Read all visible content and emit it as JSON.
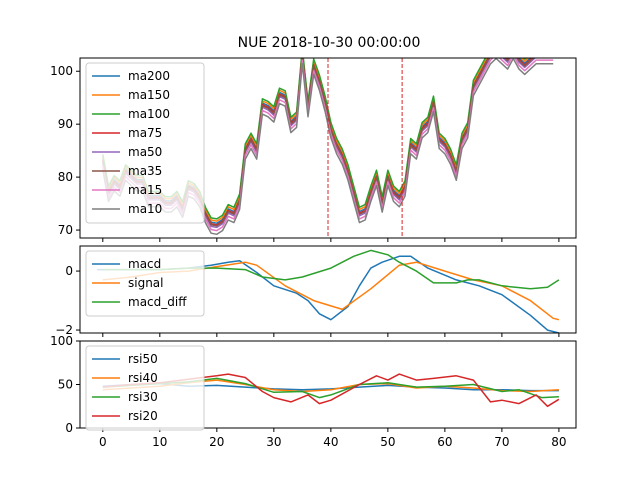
{
  "chart_data": [
    {
      "type": "line",
      "title": "NUE 2018-10-30 00:00:00",
      "xlim": [
        -4,
        83
      ],
      "ylim": [
        68.5,
        102.5
      ],
      "yticks": [
        70,
        80,
        90,
        100
      ],
      "grid": false,
      "legend": "upper-left",
      "vlines": [
        39.5,
        52.5
      ],
      "vline_color": "#d62728",
      "x": [
        0,
        1,
        2,
        3,
        4,
        5,
        6,
        7,
        8,
        9,
        10,
        11,
        12,
        13,
        14,
        15,
        16,
        17,
        18,
        19,
        20,
        21,
        22,
        23,
        24,
        25,
        26,
        27,
        28,
        29,
        30,
        31,
        32,
        33,
        34,
        35,
        36,
        37,
        38,
        39,
        40,
        41,
        42,
        43,
        44,
        45,
        46,
        47,
        48,
        49,
        50,
        51,
        52,
        53,
        54,
        55,
        56,
        57,
        58,
        59,
        60,
        61,
        62,
        63,
        64,
        65,
        66,
        67,
        68,
        69,
        70,
        71,
        72,
        73,
        74,
        75,
        76,
        77,
        78,
        79
      ],
      "base": [
        83,
        77,
        79,
        78,
        81,
        80,
        79,
        79,
        76,
        76,
        76,
        75,
        75,
        76,
        74,
        78,
        77.5,
        76,
        73,
        71,
        70.8,
        71.5,
        73.5,
        73,
        75.5,
        85,
        87,
        85,
        93.5,
        93,
        92,
        95.5,
        95,
        90,
        91,
        103,
        93,
        101,
        98,
        94,
        89,
        86,
        84,
        81,
        77,
        73,
        73.5,
        77,
        80,
        75,
        80,
        77,
        76,
        78,
        86,
        85,
        89,
        90,
        94,
        87,
        86,
        84,
        81,
        87,
        89,
        97,
        99,
        101,
        103,
        104,
        103,
        102,
        104,
        102,
        101,
        102,
        103,
        103,
        103,
        103
      ],
      "series": [
        {
          "name": "ma200",
          "color": "#1f77b4",
          "offset": 0.5
        },
        {
          "name": "ma150",
          "color": "#ff7f0e",
          "offset": 0.9
        },
        {
          "name": "ma100",
          "color": "#2ca02c",
          "offset": 1.3
        },
        {
          "name": "ma75",
          "color": "#d62728",
          "offset": 0.2
        },
        {
          "name": "ma50",
          "color": "#9467bd",
          "offset": -0.3
        },
        {
          "name": "ma35",
          "color": "#8c564b",
          "offset": 0.0
        },
        {
          "name": "ma15",
          "color": "#e377c2",
          "offset": -0.9
        },
        {
          "name": "ma10",
          "color": "#7f7f7f",
          "offset": -1.6
        }
      ]
    },
    {
      "type": "line",
      "xlim": [
        -4,
        83
      ],
      "ylim": [
        -2.1,
        0.85
      ],
      "yticks": [
        -2,
        0
      ],
      "grid": false,
      "legend": "upper-left",
      "series": [
        {
          "name": "macd",
          "color": "#1f77b4",
          "x": [
            -1,
            5,
            10,
            15,
            19,
            22,
            24,
            27,
            30,
            34,
            36,
            38,
            40,
            43,
            45,
            47,
            49,
            52,
            54,
            57,
            62,
            66,
            70,
            75,
            78,
            80
          ],
          "y": [
            0.05,
            0.05,
            0.05,
            0.1,
            0.2,
            0.3,
            0.35,
            -0.05,
            -0.5,
            -0.75,
            -1.0,
            -1.45,
            -1.65,
            -1.2,
            -0.5,
            0.1,
            0.3,
            0.5,
            0.5,
            0.1,
            -0.3,
            -0.5,
            -0.8,
            -1.5,
            -2.0,
            -2.1
          ]
        },
        {
          "name": "signal",
          "color": "#ff7f0e",
          "x": [
            0,
            5,
            10,
            15,
            20,
            25,
            27,
            32,
            37,
            42,
            47,
            52,
            55,
            60,
            65,
            70,
            75,
            79,
            80
          ],
          "y": [
            -0.3,
            -0.2,
            -0.05,
            0.0,
            0.15,
            0.3,
            0.2,
            -0.5,
            -1.0,
            -1.3,
            -0.6,
            0.2,
            0.3,
            0.0,
            -0.3,
            -0.5,
            -1.0,
            -1.6,
            -1.65
          ]
        },
        {
          "name": "macd_diff",
          "color": "#2ca02c",
          "x": [
            0,
            10,
            15,
            20,
            25,
            28,
            32,
            35,
            40,
            44,
            47,
            50,
            52,
            55,
            58,
            62,
            64,
            66,
            70,
            75,
            78,
            80
          ],
          "y": [
            0.05,
            0.05,
            0.1,
            0.1,
            0.05,
            -0.2,
            -0.3,
            -0.2,
            0.1,
            0.5,
            0.7,
            0.55,
            0.3,
            0.0,
            -0.4,
            -0.4,
            -0.3,
            -0.3,
            -0.5,
            -0.6,
            -0.55,
            -0.3
          ]
        }
      ]
    },
    {
      "type": "line",
      "xlim": [
        -4,
        83
      ],
      "ylim": [
        0,
        100
      ],
      "yticks": [
        0,
        50,
        100
      ],
      "xticks": [
        0,
        10,
        20,
        30,
        40,
        50,
        60,
        70,
        80
      ],
      "grid": false,
      "legend": "upper-left",
      "series": [
        {
          "name": "rsi50",
          "color": "#1f77b4",
          "x": [
            0,
            5,
            10,
            15,
            20,
            25,
            30,
            35,
            40,
            45,
            50,
            55,
            60,
            65,
            70,
            75,
            80
          ],
          "y": [
            48,
            50,
            51,
            48,
            49,
            47,
            45,
            44,
            45,
            47,
            49,
            47,
            46,
            44,
            44,
            43,
            43
          ]
        },
        {
          "name": "rsi40",
          "color": "#ff7f0e",
          "x": [
            0,
            5,
            10,
            15,
            20,
            25,
            30,
            35,
            40,
            45,
            50,
            55,
            60,
            65,
            70,
            75,
            80
          ],
          "y": [
            44,
            46,
            48,
            52,
            55,
            50,
            44,
            42,
            44,
            50,
            51,
            46,
            48,
            46,
            43,
            42,
            44
          ]
        },
        {
          "name": "rsi30",
          "color": "#2ca02c",
          "x": [
            0,
            5,
            10,
            15,
            20,
            25,
            30,
            35,
            38,
            40,
            45,
            50,
            55,
            60,
            65,
            70,
            73,
            77,
            80
          ],
          "y": [
            47,
            49,
            51,
            53,
            57,
            51,
            41,
            42,
            35,
            38,
            50,
            52,
            47,
            48,
            50,
            42,
            44,
            35,
            36
          ]
        },
        {
          "name": "rsi20",
          "color": "#d62728",
          "x": [
            0,
            5,
            10,
            15,
            20,
            22,
            25,
            28,
            30,
            33,
            36,
            38,
            40,
            45,
            48,
            50,
            52,
            55,
            58,
            62,
            65,
            68,
            70,
            73,
            76,
            78,
            80
          ],
          "y": [
            47,
            50,
            52,
            56,
            60,
            62,
            58,
            42,
            35,
            30,
            38,
            28,
            32,
            50,
            60,
            55,
            62,
            55,
            57,
            60,
            55,
            30,
            32,
            28,
            38,
            25,
            33
          ]
        }
      ]
    }
  ]
}
